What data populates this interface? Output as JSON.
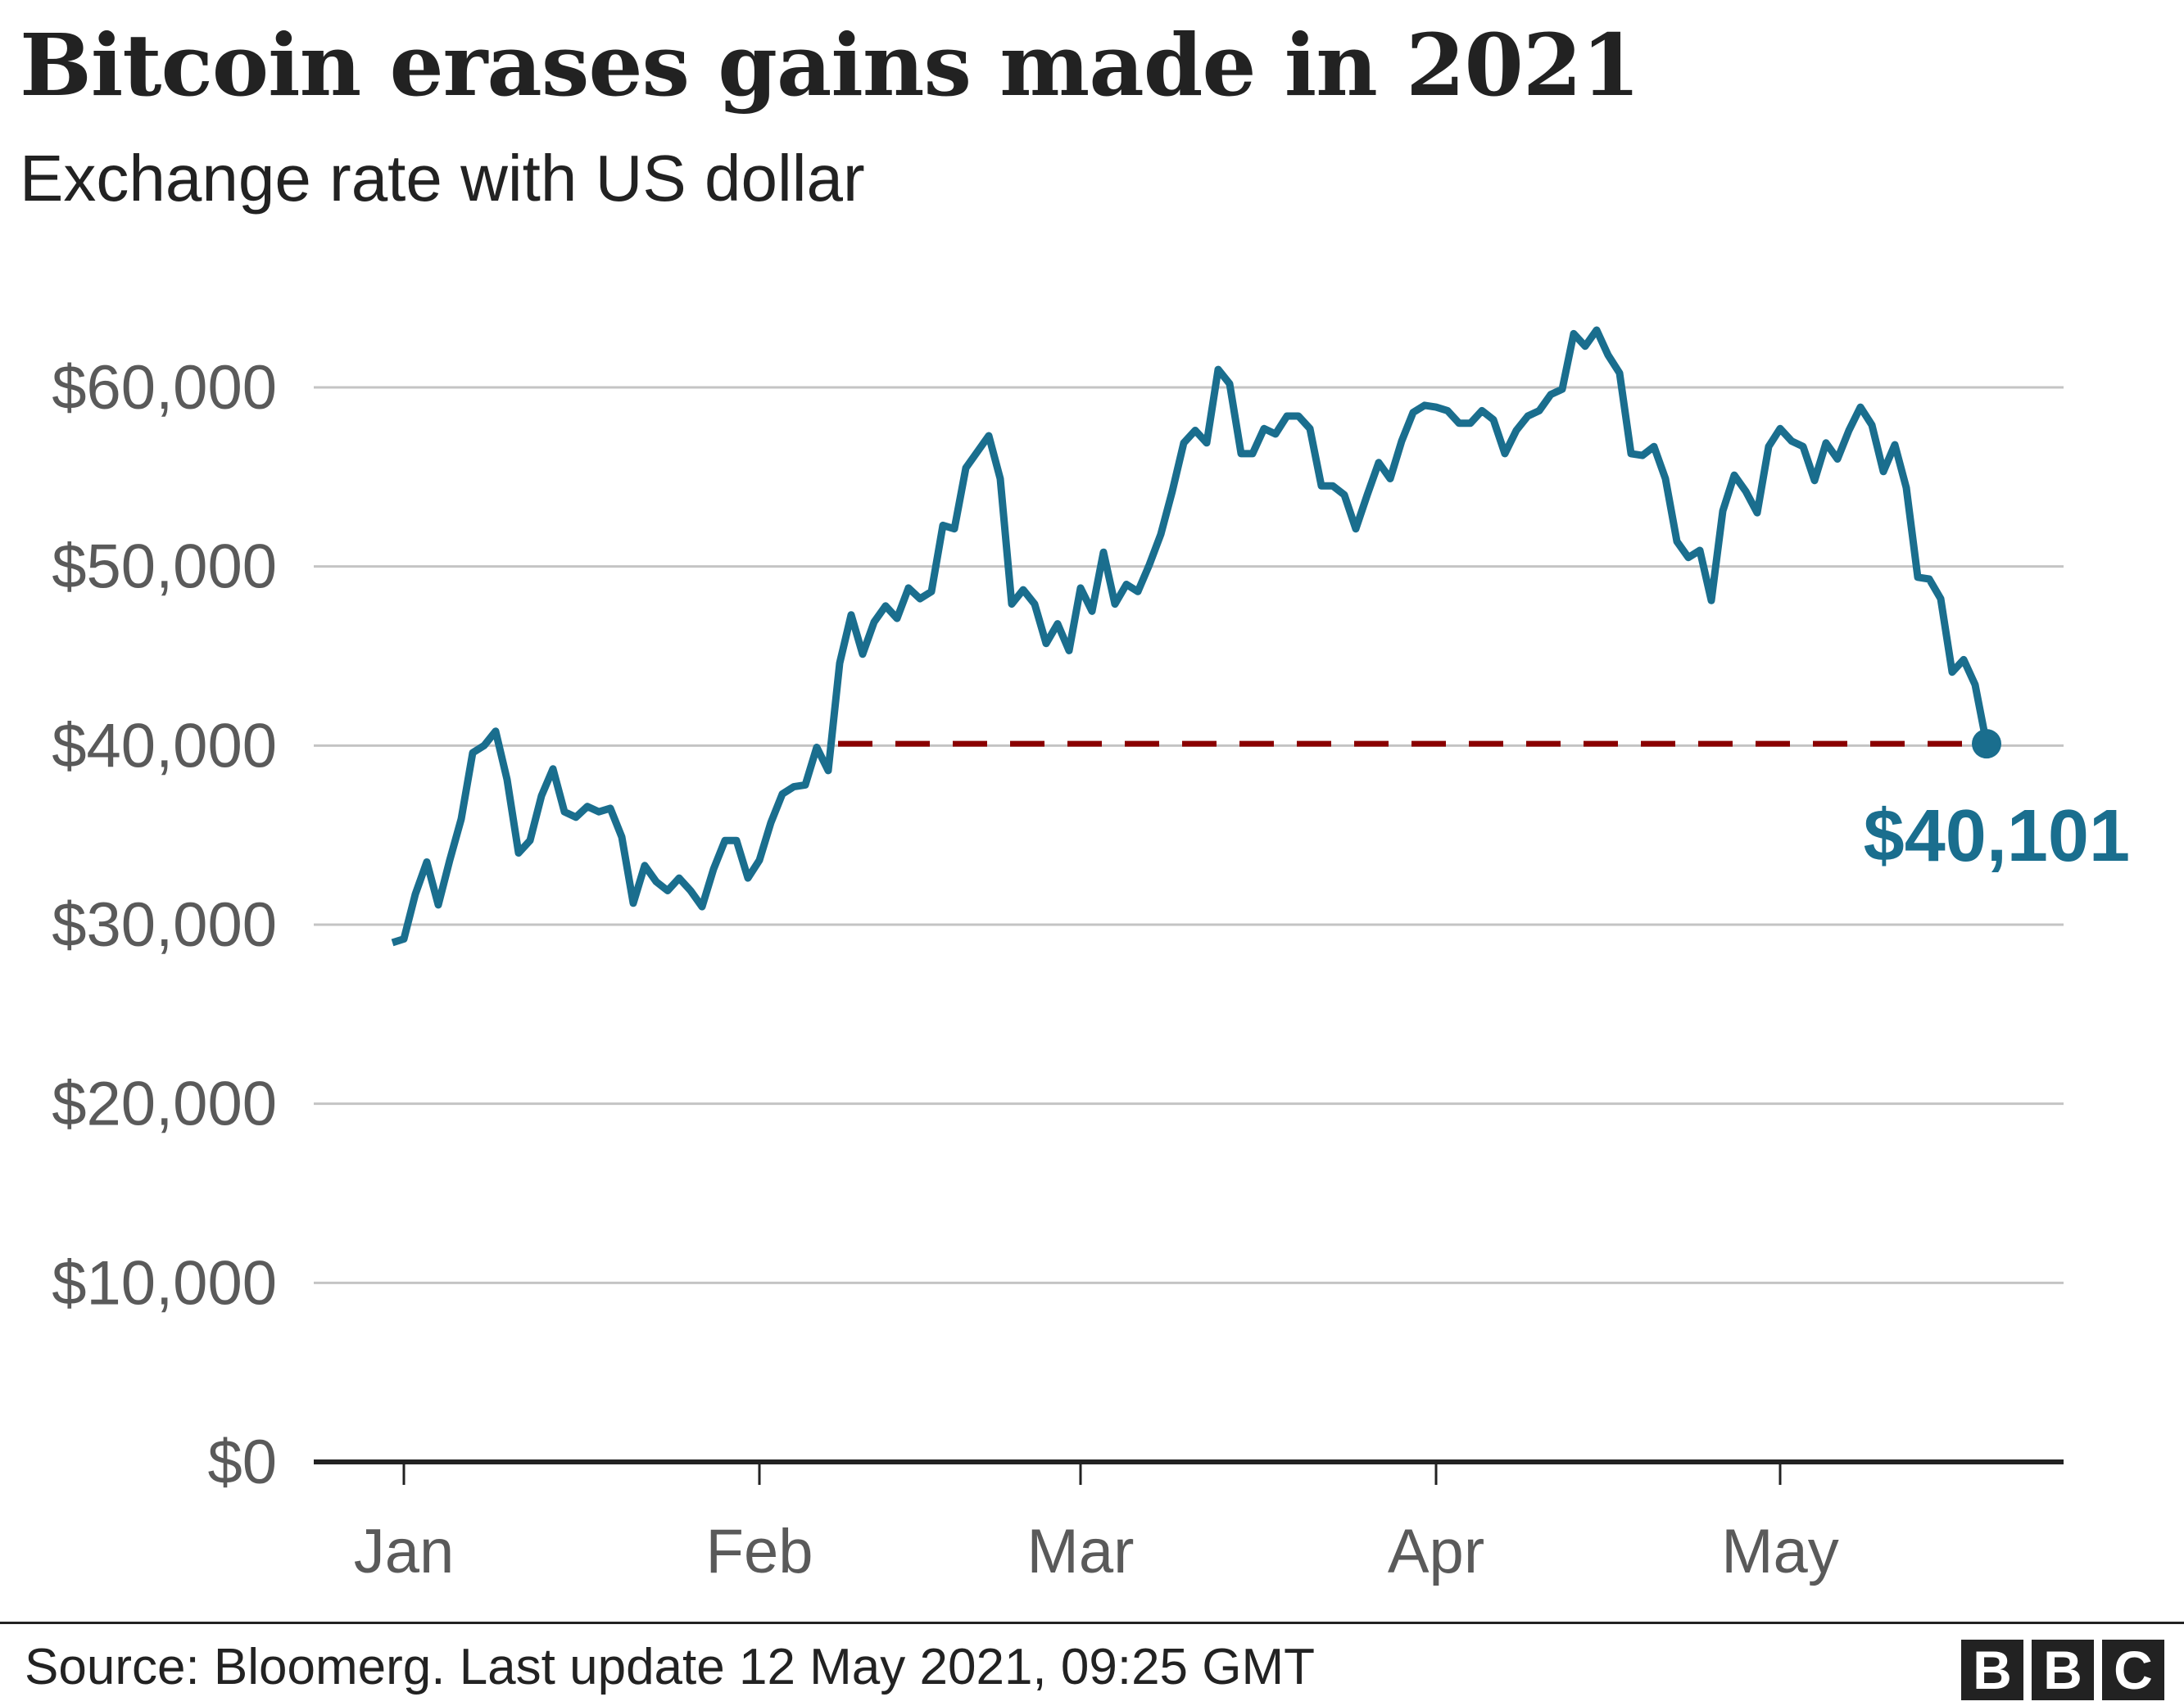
{
  "title": "Bitcoin erases gains made in 2021",
  "subtitle": "Exchange rate with US dollar",
  "footer": {
    "source": "Source: Bloomerg. Last update 12 May 2021, 09:25 GMT",
    "logo": [
      "B",
      "B",
      "C"
    ]
  },
  "colors": {
    "line": "#1a6e8e",
    "reference": "#8a0000",
    "grid": "#c4c4c4",
    "axis": "#222222",
    "ticklabel": "#5a5a5a"
  },
  "chart_data": {
    "type": "line",
    "title": "Bitcoin erases gains made in 2021",
    "subtitle": "Exchange rate with US dollar",
    "ylim": [
      0,
      60000
    ],
    "yticks": [
      0,
      10000,
      20000,
      30000,
      40000,
      50000,
      60000
    ],
    "ytick_labels": [
      "$0",
      "$10,000",
      "$20,000",
      "$30,000",
      "$40,000",
      "$50,000",
      "$60,000"
    ],
    "xticks": [
      "2021-01-01",
      "2021-02-01",
      "2021-03-01",
      "2021-04-01",
      "2021-05-01"
    ],
    "xtick_labels": [
      "Jan",
      "Feb",
      "Mar",
      "Apr",
      "May"
    ],
    "grid": true,
    "annotation": {
      "label": "$40,101",
      "value": 40101,
      "reference_line_from": "2021-02-07"
    },
    "series": [
      {
        "points": [
          [
            "2020-12-31",
            29000
          ],
          [
            "2021-01-01",
            29200
          ],
          [
            "2021-01-02",
            31700
          ],
          [
            "2021-01-03",
            33500
          ],
          [
            "2021-01-04",
            31100
          ],
          [
            "2021-01-05",
            33600
          ],
          [
            "2021-01-06",
            35900
          ],
          [
            "2021-01-07",
            39600
          ],
          [
            "2021-01-08",
            40000
          ],
          [
            "2021-01-09",
            40800
          ],
          [
            "2021-01-10",
            38100
          ],
          [
            "2021-01-11",
            34000
          ],
          [
            "2021-01-12",
            34700
          ],
          [
            "2021-01-13",
            37200
          ],
          [
            "2021-01-14",
            38700
          ],
          [
            "2021-01-15",
            36300
          ],
          [
            "2021-01-16",
            36000
          ],
          [
            "2021-01-17",
            36600
          ],
          [
            "2021-01-18",
            36300
          ],
          [
            "2021-01-19",
            36500
          ],
          [
            "2021-01-20",
            34900
          ],
          [
            "2021-01-21",
            31200
          ],
          [
            "2021-01-22",
            33300
          ],
          [
            "2021-01-23",
            32400
          ],
          [
            "2021-01-24",
            31900
          ],
          [
            "2021-01-25",
            32600
          ],
          [
            "2021-01-26",
            31900
          ],
          [
            "2021-01-27",
            31000
          ],
          [
            "2021-01-28",
            33100
          ],
          [
            "2021-01-29",
            34700
          ],
          [
            "2021-01-30",
            34700
          ],
          [
            "2021-01-31",
            32600
          ],
          [
            "2021-02-01",
            33600
          ],
          [
            "2021-02-02",
            35700
          ],
          [
            "2021-02-03",
            37300
          ],
          [
            "2021-02-04",
            37700
          ],
          [
            "2021-02-05",
            37800
          ],
          [
            "2021-02-06",
            39900
          ],
          [
            "2021-02-07",
            38600
          ],
          [
            "2021-02-08",
            44600
          ],
          [
            "2021-02-09",
            47300
          ],
          [
            "2021-02-10",
            45100
          ],
          [
            "2021-02-11",
            46900
          ],
          [
            "2021-02-12",
            47800
          ],
          [
            "2021-02-13",
            47100
          ],
          [
            "2021-02-14",
            48800
          ],
          [
            "2021-02-15",
            48200
          ],
          [
            "2021-02-16",
            48600
          ],
          [
            "2021-02-17",
            52300
          ],
          [
            "2021-02-18",
            52100
          ],
          [
            "2021-02-19",
            55500
          ],
          [
            "2021-02-20",
            56400
          ],
          [
            "2021-02-21",
            57300
          ],
          [
            "2021-02-22",
            54900
          ],
          [
            "2021-02-23",
            47900
          ],
          [
            "2021-02-24",
            48700
          ],
          [
            "2021-02-25",
            47900
          ],
          [
            "2021-02-26",
            45700
          ],
          [
            "2021-02-27",
            46800
          ],
          [
            "2021-02-28",
            45300
          ],
          [
            "2021-03-01",
            48800
          ],
          [
            "2021-03-02",
            47500
          ],
          [
            "2021-03-03",
            50800
          ],
          [
            "2021-03-04",
            47900
          ],
          [
            "2021-03-05",
            49000
          ],
          [
            "2021-03-06",
            48600
          ],
          [
            "2021-03-07",
            50100
          ],
          [
            "2021-03-08",
            51800
          ],
          [
            "2021-03-09",
            54200
          ],
          [
            "2021-03-10",
            56900
          ],
          [
            "2021-03-11",
            57600
          ],
          [
            "2021-03-12",
            56900
          ],
          [
            "2021-03-13",
            61000
          ],
          [
            "2021-03-14",
            60200
          ],
          [
            "2021-03-15",
            56300
          ],
          [
            "2021-03-16",
            56300
          ],
          [
            "2021-03-17",
            57700
          ],
          [
            "2021-03-18",
            57400
          ],
          [
            "2021-03-19",
            58400
          ],
          [
            "2021-03-20",
            58400
          ],
          [
            "2021-03-21",
            57700
          ],
          [
            "2021-03-22",
            54500
          ],
          [
            "2021-03-23",
            54500
          ],
          [
            "2021-03-24",
            54000
          ],
          [
            "2021-03-25",
            52100
          ],
          [
            "2021-03-26",
            54000
          ],
          [
            "2021-03-27",
            55800
          ],
          [
            "2021-03-28",
            54900
          ],
          [
            "2021-03-29",
            57000
          ],
          [
            "2021-03-30",
            58600
          ],
          [
            "2021-03-31",
            59000
          ],
          [
            "2021-04-01",
            58900
          ],
          [
            "2021-04-02",
            58700
          ],
          [
            "2021-04-03",
            58000
          ],
          [
            "2021-04-04",
            58000
          ],
          [
            "2021-04-05",
            58700
          ],
          [
            "2021-04-06",
            58200
          ],
          [
            "2021-04-07",
            56300
          ],
          [
            "2021-04-08",
            57600
          ],
          [
            "2021-04-09",
            58400
          ],
          [
            "2021-04-10",
            58700
          ],
          [
            "2021-04-11",
            59600
          ],
          [
            "2021-04-12",
            59900
          ],
          [
            "2021-04-13",
            63000
          ],
          [
            "2021-04-14",
            62300
          ],
          [
            "2021-04-15",
            63200
          ],
          [
            "2021-04-16",
            61800
          ],
          [
            "2021-04-17",
            60800
          ],
          [
            "2021-04-18",
            56300
          ],
          [
            "2021-04-19",
            56200
          ],
          [
            "2021-04-20",
            56700
          ],
          [
            "2021-04-21",
            54900
          ],
          [
            "2021-04-22",
            51400
          ],
          [
            "2021-04-23",
            50500
          ],
          [
            "2021-04-24",
            50900
          ],
          [
            "2021-04-25",
            48100
          ],
          [
            "2021-04-26",
            53100
          ],
          [
            "2021-04-27",
            55100
          ],
          [
            "2021-04-28",
            54200
          ],
          [
            "2021-04-29",
            53000
          ],
          [
            "2021-04-30",
            56700
          ],
          [
            "2021-05-01",
            57700
          ],
          [
            "2021-05-02",
            57000
          ],
          [
            "2021-05-03",
            56700
          ],
          [
            "2021-05-04",
            54800
          ],
          [
            "2021-05-05",
            56900
          ],
          [
            "2021-05-06",
            56000
          ],
          [
            "2021-05-07",
            57600
          ],
          [
            "2021-05-08",
            58900
          ],
          [
            "2021-05-09",
            57900
          ],
          [
            "2021-05-10",
            55300
          ],
          [
            "2021-05-11",
            56800
          ],
          [
            "2021-05-12",
            54400
          ],
          [
            "2021-05-13",
            49400
          ],
          [
            "2021-05-14",
            49300
          ],
          [
            "2021-05-15",
            48200
          ],
          [
            "2021-05-16",
            44100
          ],
          [
            "2021-05-17",
            44800
          ],
          [
            "2021-05-18",
            43400
          ],
          [
            "2021-05-19",
            40101
          ]
        ]
      }
    ]
  }
}
